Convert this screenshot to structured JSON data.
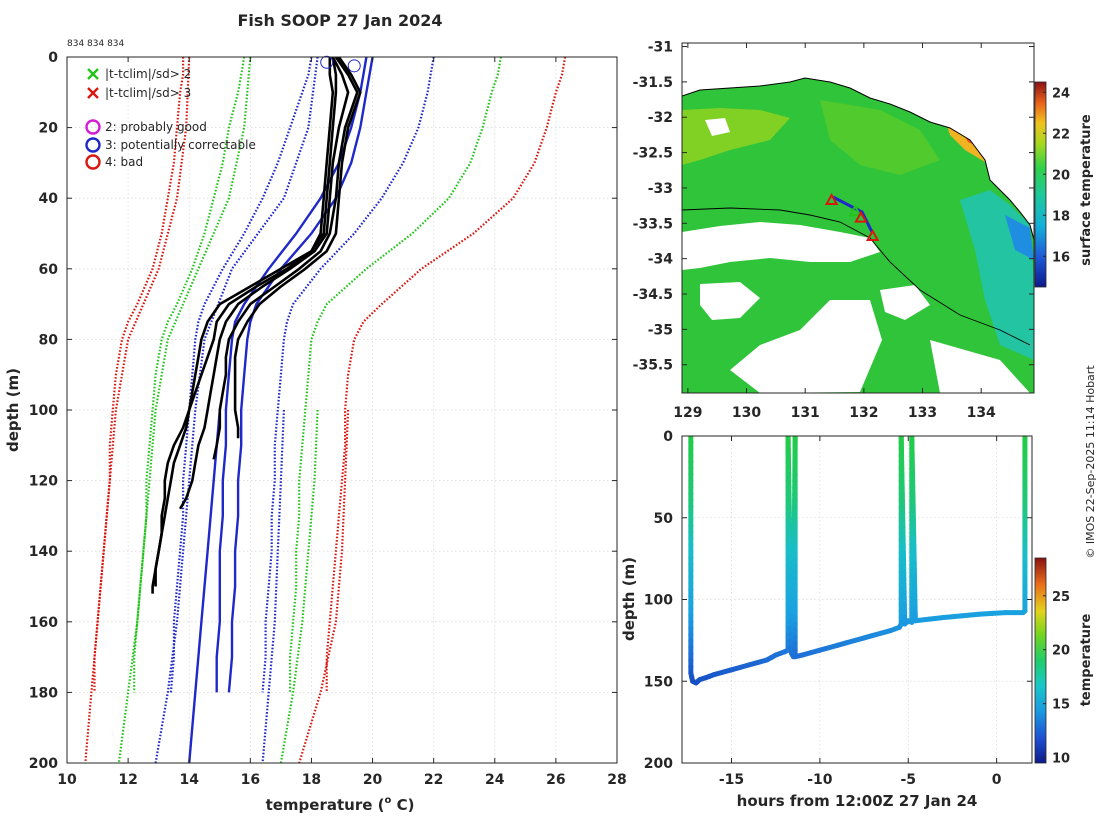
{
  "chart_data": [
    {
      "type": "line",
      "title": "Fish SOOP 27 Jan 2024",
      "subtitle": "834 834 834",
      "xlabel": "temperature (",
      "xlabel_sup": "o",
      "xlabel_tail": " C)",
      "ylabel": "depth (m)",
      "xlim": [
        10,
        28
      ],
      "ylim": [
        0,
        200
      ],
      "x_ticks": [
        "10",
        "12",
        "14",
        "16",
        "18",
        "20",
        "22",
        "24",
        "26",
        "28"
      ],
      "y_ticks": [
        "0",
        "20",
        "40",
        "60",
        "80",
        "100",
        "120",
        "140",
        "160",
        "180",
        "200"
      ],
      "grid": true,
      "legend": [
        {
          "marker": "x",
          "color": "#22c41a",
          "label": "|t-tclim|/sd> 2"
        },
        {
          "marker": "x",
          "color": "#d9170f",
          "label": "|t-tclim|/sd> 3"
        },
        {
          "marker": "o",
          "color": "#d41dd6",
          "label": "2: probably good"
        },
        {
          "marker": "o",
          "color": "#1f28c9",
          "label": "3: potentially correctable"
        },
        {
          "marker": "o",
          "color": "#d9170f",
          "label": "4: bad"
        }
      ],
      "climatology_depths": [
        0,
        5,
        10,
        20,
        30,
        40,
        50,
        60,
        70,
        75,
        80,
        90,
        100,
        110,
        120,
        130,
        140,
        150,
        160,
        170,
        180
      ],
      "climatology": [
        {
          "name": "-3sd left",
          "color": "#d9170f",
          "style": "dotted",
          "x": [
            13.8,
            13.8,
            13.7,
            13.6,
            13.5,
            13.3,
            13.1,
            12.8,
            12.3,
            12.0,
            11.8,
            11.6,
            11.5,
            11.4,
            11.4,
            11.3,
            11.2,
            11.1,
            11.0,
            10.9,
            10.9
          ]
        },
        {
          "name": "-2sd left",
          "color": "#22c41a",
          "style": "dotted",
          "x": [
            15.8,
            15.7,
            15.6,
            15.3,
            15.1,
            14.8,
            14.5,
            14.1,
            13.6,
            13.3,
            13.1,
            12.9,
            12.8,
            12.7,
            12.6,
            12.6,
            12.5,
            12.4,
            12.3,
            12.2,
            12.2
          ]
        },
        {
          "name": "-1sd left",
          "color": "#1f28c9",
          "style": "dotted",
          "x": [
            18.0,
            17.9,
            17.7,
            17.3,
            16.9,
            16.4,
            15.8,
            15.1,
            14.5,
            14.3,
            14.2,
            14.1,
            14.0,
            13.9,
            13.8,
            13.8,
            13.7,
            13.6,
            13.5,
            13.5,
            13.4
          ]
        },
        {
          "name": "mean left",
          "color": "#1f28c9",
          "style": "solid",
          "x": [
            19.8,
            19.7,
            19.6,
            19.3,
            18.9,
            18.3,
            17.5,
            16.6,
            15.8,
            15.5,
            15.4,
            15.3,
            15.2,
            15.2,
            15.1,
            15.1,
            15.0,
            15.0,
            15.0,
            14.9,
            14.9
          ]
        },
        {
          "name": "mean right",
          "color": "#1f28c9",
          "style": "solid",
          "x": [
            20.0,
            19.9,
            19.8,
            19.6,
            19.3,
            18.8,
            18.0,
            17.0,
            16.2,
            16.0,
            15.9,
            15.8,
            15.7,
            15.7,
            15.6,
            15.6,
            15.5,
            15.5,
            15.4,
            15.4,
            15.3
          ]
        },
        {
          "name": "+1sd right",
          "color": "#1f28c9",
          "style": "dotted",
          "x": [
            22.0,
            21.9,
            21.8,
            21.5,
            21.0,
            20.3,
            19.4,
            18.3,
            17.4,
            17.2,
            17.1,
            17.0,
            16.9,
            16.8,
            16.8,
            16.7,
            16.7,
            16.6,
            16.5,
            16.5,
            16.4
          ]
        },
        {
          "name": "+2sd right",
          "color": "#22c41a",
          "style": "dotted",
          "x": [
            24.2,
            24.1,
            23.9,
            23.6,
            23.2,
            22.5,
            21.3,
            19.8,
            18.5,
            18.2,
            18.0,
            17.9,
            17.8,
            17.7,
            17.6,
            17.6,
            17.5,
            17.5,
            17.4,
            17.3,
            17.3
          ]
        },
        {
          "name": "+3sd right",
          "color": "#d9170f",
          "style": "dotted",
          "x": [
            26.3,
            26.2,
            26.0,
            25.7,
            25.3,
            24.6,
            23.3,
            21.6,
            20.3,
            19.7,
            19.4,
            19.2,
            19.1,
            19.1,
            19.0,
            18.9,
            18.8,
            18.7,
            18.6,
            18.5,
            18.5
          ]
        }
      ],
      "climatology_extra": [
        {
          "color": "#d9170f",
          "style": "dotted",
          "depths": [
            0,
            20,
            40,
            60,
            80,
            100,
            120,
            140,
            160,
            180,
            200
          ],
          "x": [
            14.0,
            13.9,
            13.6,
            13.0,
            12.0,
            11.6,
            11.4,
            11.2,
            11.0,
            10.8,
            10.6
          ]
        },
        {
          "color": "#22c41a",
          "style": "dotted",
          "depths": [
            0,
            20,
            40,
            60,
            80,
            100,
            120,
            140,
            160,
            180,
            200
          ],
          "x": [
            16.0,
            15.8,
            15.3,
            14.3,
            13.3,
            12.9,
            12.7,
            12.5,
            12.3,
            12.0,
            11.7
          ]
        },
        {
          "color": "#1f28c9",
          "style": "dotted",
          "depths": [
            0,
            20,
            40,
            60,
            80,
            100,
            120,
            140,
            160,
            180,
            200
          ],
          "x": [
            18.2,
            17.9,
            17.1,
            15.4,
            14.5,
            14.2,
            14.0,
            13.8,
            13.6,
            13.3,
            12.9
          ]
        },
        {
          "color": "#1f28c9",
          "style": "solid",
          "depths": [
            100,
            120,
            140,
            160,
            180,
            200
          ],
          "x": [
            15.0,
            14.8,
            14.6,
            14.4,
            14.2,
            14.0
          ]
        },
        {
          "color": "#1f28c9",
          "style": "dotted",
          "depths": [
            100,
            120,
            140,
            160,
            180,
            200
          ],
          "x": [
            17.1,
            17.0,
            16.9,
            16.8,
            16.6,
            16.4
          ]
        },
        {
          "color": "#22c41a",
          "style": "dotted",
          "depths": [
            100,
            120,
            140,
            160,
            180,
            200
          ],
          "x": [
            18.2,
            18.1,
            17.9,
            17.7,
            17.4,
            17.0
          ]
        },
        {
          "color": "#d9170f",
          "style": "dotted",
          "depths": [
            100,
            120,
            140,
            160,
            180,
            200
          ],
          "x": [
            19.2,
            19.1,
            19.0,
            18.8,
            18.3,
            17.6
          ]
        }
      ],
      "profiles": [
        {
          "name": "profile 1",
          "color": "#000000",
          "depths": [
            0,
            5,
            10,
            20,
            30,
            40,
            50,
            55,
            60,
            65,
            70,
            75,
            80,
            85,
            90,
            95,
            100,
            105,
            110,
            115,
            120,
            125,
            130,
            135,
            140,
            145,
            150,
            152
          ],
          "x": [
            18.6,
            18.6,
            18.7,
            18.6,
            18.5,
            18.4,
            18.3,
            18.0,
            17.2,
            16.2,
            15.3,
            14.9,
            14.8,
            14.6,
            14.4,
            14.2,
            14.0,
            13.8,
            13.5,
            13.3,
            13.2,
            13.2,
            13.1,
            13.1,
            13.0,
            12.9,
            12.8,
            12.8
          ]
        },
        {
          "name": "profile 2",
          "color": "#000000",
          "depths": [
            0,
            5,
            10,
            20,
            30,
            40,
            50,
            55,
            60,
            65,
            70,
            75,
            80,
            85,
            90,
            95,
            100,
            105,
            110,
            115,
            120,
            125,
            130,
            135,
            140,
            145,
            150
          ],
          "x": [
            18.7,
            18.8,
            18.8,
            18.7,
            18.6,
            18.5,
            18.4,
            18.0,
            17.0,
            16.0,
            15.0,
            14.6,
            14.4,
            14.3,
            14.2,
            14.1,
            14.0,
            13.9,
            13.7,
            13.5,
            13.4,
            13.3,
            13.2,
            13.1,
            13.0,
            12.9,
            12.9
          ]
        },
        {
          "name": "profile 3",
          "color": "#000000",
          "depths": [
            0,
            5,
            10,
            20,
            30,
            40,
            50,
            55,
            60,
            65,
            70,
            75,
            80,
            85,
            90,
            95,
            100,
            105,
            110,
            115,
            120,
            125,
            128
          ],
          "x": [
            18.7,
            19.0,
            19.2,
            18.9,
            18.7,
            18.6,
            18.5,
            18.1,
            17.3,
            16.4,
            15.6,
            15.2,
            15.0,
            14.9,
            14.8,
            14.7,
            14.6,
            14.5,
            14.3,
            14.2,
            14.1,
            13.9,
            13.7
          ]
        },
        {
          "name": "profile 4",
          "color": "#000000",
          "depths": [
            0,
            5,
            10,
            20,
            30,
            40,
            50,
            55,
            60,
            65,
            70,
            75,
            80,
            85,
            90,
            95,
            100,
            105,
            110,
            114
          ],
          "x": [
            18.8,
            19.2,
            19.5,
            19.1,
            18.9,
            18.8,
            18.6,
            18.3,
            17.6,
            16.8,
            16.0,
            15.6,
            15.3,
            15.2,
            15.2,
            15.1,
            15.0,
            15.0,
            14.9,
            14.8
          ]
        },
        {
          "name": "profile 5",
          "color": "#000000",
          "depths": [
            0,
            5,
            10,
            20,
            30,
            40,
            50,
            55,
            60,
            65,
            70,
            75,
            80,
            85,
            90,
            95,
            100,
            105,
            108
          ],
          "x": [
            18.9,
            19.3,
            19.6,
            19.2,
            19.0,
            18.9,
            18.8,
            18.5,
            17.8,
            17.0,
            16.3,
            15.9,
            15.6,
            15.5,
            15.5,
            15.5,
            15.5,
            15.6,
            15.6
          ]
        }
      ],
      "flag_circles": [
        {
          "x": 18.5,
          "depth": 1.5,
          "color": "#1f28c9"
        },
        {
          "x": 19.4,
          "depth": 2.5,
          "color": "#1f28c9"
        }
      ]
    },
    {
      "type": "heatmap",
      "title": "",
      "colorbar_label": "surface temperature",
      "x_ticks": [
        "129",
        "130",
        "131",
        "132",
        "133",
        "134"
      ],
      "y_ticks": [
        "-31",
        "-31.5",
        "-32",
        "-32.5",
        "-33",
        "-33.5",
        "-34",
        "-34.5",
        "-35",
        "-35.5"
      ],
      "xlim": [
        128.9,
        134.9
      ],
      "ylim": [
        -35.9,
        -30.95
      ],
      "colorbar_range": [
        14.5,
        24.5
      ],
      "colorbar_ticks": [
        "16",
        "18",
        "20",
        "22",
        "24"
      ],
      "track_markers": [
        {
          "lon": 131.45,
          "lat": -33.17,
          "color": "#d9170f"
        },
        {
          "lon": 131.85,
          "lat": -33.33,
          "color": "#22c41a"
        },
        {
          "lon": 131.95,
          "lat": -33.42,
          "color": "#d9170f"
        },
        {
          "lon": 132.15,
          "lat": -33.68,
          "color": "#d9170f"
        }
      ]
    },
    {
      "type": "scatter",
      "title": "",
      "xlabel": "hours from 12:00Z 27 Jan 24",
      "ylabel": "depth (m)",
      "colorbar_label": "temperature",
      "xlim": [
        -17.8,
        2.0
      ],
      "ylim": [
        0,
        200
      ],
      "x_ticks": [
        "-15",
        "-10",
        "-5",
        "0"
      ],
      "x_tick_values": [
        -15,
        -10,
        -5,
        0
      ],
      "y_ticks": [
        "0",
        "50",
        "100",
        "150",
        "200"
      ],
      "colorbar_range": [
        9.5,
        28.5
      ],
      "colorbar_ticks": [
        "10",
        "15",
        "20",
        "25"
      ],
      "series": [
        {
          "name": "tow path",
          "x": [
            -17.3,
            -17.3,
            -17.2,
            -17.0,
            -16.8,
            -16.5,
            -16.0,
            -15.0,
            -14.0,
            -13.0,
            -12.5,
            -12.0,
            -11.8,
            -11.8,
            -11.6,
            -11.5,
            -11.4,
            -11.4,
            -11.0,
            -10.0,
            -9.0,
            -8.0,
            -7.0,
            -6.0,
            -5.5,
            -5.4,
            -5.4,
            -5.2,
            -5.0,
            -4.8,
            -4.8,
            -4.6,
            -3.0,
            -1.0,
            0.5,
            1.5,
            1.6,
            1.6
          ],
          "depth": [
            0,
            145,
            150,
            151,
            149,
            148,
            146,
            143,
            140,
            137,
            134,
            132,
            131,
            0,
            133,
            135,
            0,
            135,
            134,
            131,
            128,
            125,
            122,
            119,
            117,
            115,
            0,
            115,
            113,
            114,
            0,
            113,
            111,
            109,
            108,
            108,
            107,
            0
          ]
        }
      ]
    }
  ],
  "side_text": "© IMOS 22-Sep-2025 11:14 Hobart"
}
